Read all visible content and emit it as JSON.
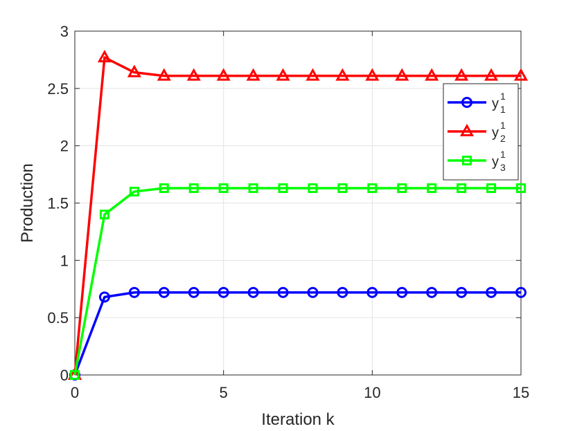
{
  "chart_data": {
    "type": "line",
    "title": "",
    "xlabel": "Iteration k",
    "ylabel": "Production",
    "xlim": [
      0,
      15
    ],
    "ylim": [
      0,
      3
    ],
    "xticks": [
      0,
      5,
      10,
      15
    ],
    "yticks": [
      0,
      0.5,
      1,
      1.5,
      2,
      2.5,
      3
    ],
    "xtick_labels": [
      "0",
      "5",
      "10",
      "15"
    ],
    "ytick_labels": [
      "0",
      "0.5",
      "1",
      "1.5",
      "2",
      "2.5",
      "3"
    ],
    "grid": true,
    "legend_placement": "top-right",
    "x": [
      0,
      1,
      2,
      3,
      4,
      5,
      6,
      7,
      8,
      9,
      10,
      11,
      12,
      13,
      14,
      15
    ],
    "series": [
      {
        "name": "y",
        "subscript": "1",
        "superscript": "1",
        "color": "#0000ff",
        "marker": "circle",
        "values": [
          0,
          0.68,
          0.72,
          0.72,
          0.72,
          0.72,
          0.72,
          0.72,
          0.72,
          0.72,
          0.72,
          0.72,
          0.72,
          0.72,
          0.72,
          0.72
        ]
      },
      {
        "name": "y",
        "subscript": "2",
        "superscript": "1",
        "color": "#ff0000",
        "marker": "triangle",
        "values": [
          0,
          2.77,
          2.64,
          2.61,
          2.61,
          2.61,
          2.61,
          2.61,
          2.61,
          2.61,
          2.61,
          2.61,
          2.61,
          2.61,
          2.61,
          2.61
        ]
      },
      {
        "name": "y",
        "subscript": "3",
        "superscript": "1",
        "color": "#00ff00",
        "marker": "square",
        "values": [
          0,
          1.4,
          1.6,
          1.63,
          1.63,
          1.63,
          1.63,
          1.63,
          1.63,
          1.63,
          1.63,
          1.63,
          1.63,
          1.63,
          1.63,
          1.63
        ]
      }
    ]
  }
}
